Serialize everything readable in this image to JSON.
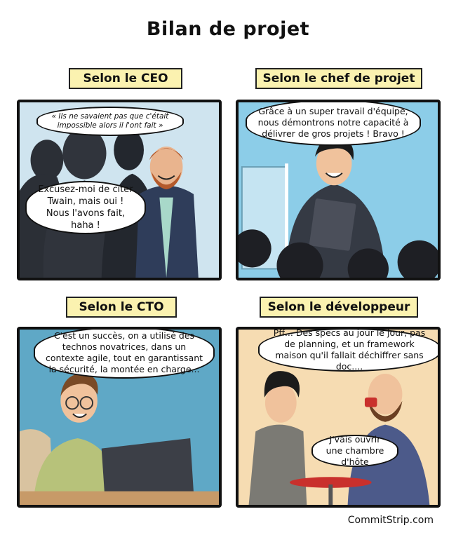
{
  "title": "Bilan de projet",
  "panels": [
    {
      "caption": "Selon le CEO",
      "bubbles": [
        "« Ils ne savaient pas que c'était impossible alors il l'ont fait »",
        "Excusez-moi de citer Twain, mais oui ! Nous l'avons fait, haha !"
      ]
    },
    {
      "caption": "Selon le chef de projet",
      "bubbles": [
        "Grâce à un super travail d'équipe, nous démontrons notre capacité à délivrer de gros projets ! Bravo !"
      ]
    },
    {
      "caption": "Selon le CTO",
      "bubbles": [
        "C'est un succès, on a utilisé des technos novatrices, dans un contexte agile, tout en garantissant la sécurité, la montée en charge..."
      ]
    },
    {
      "caption": "Selon le développeur",
      "bubbles": [
        "Pff... Des specs au jour le jour, pas de planning, et un framework maison qu'il fallait déchiffrer sans doc....",
        "J'vais ouvrir une chambre d'hôte"
      ]
    }
  ],
  "footer": "CommitStrip.com",
  "colors": {
    "panel1_bg": "#cfe4ef",
    "panel2_bg": "#8ccde8",
    "panel3_bg": "#5fa8c6",
    "panel4_bg": "#f6dcb2",
    "caption_bg": "#fbf2b0",
    "silhouette": "#2b2f36"
  }
}
